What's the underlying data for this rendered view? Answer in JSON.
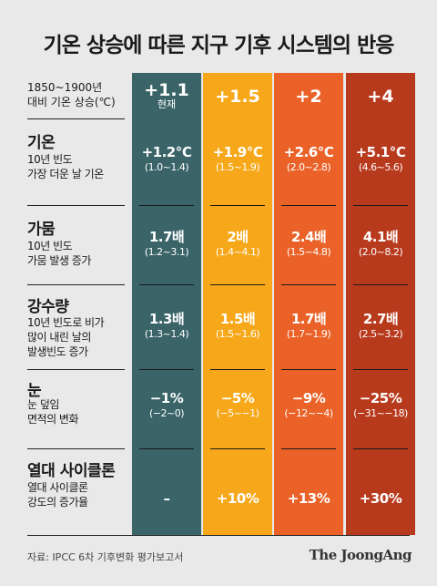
{
  "title": "기온 상승에 따른 지구 기후 시스템의 반응",
  "header_label": [
    "1850~1900년",
    "대비 기온 상승(℃)"
  ],
  "columns": [
    {
      "label": "+1.1",
      "sub": "현재",
      "color": "#3a6468"
    },
    {
      "label": "+1.5",
      "sub": "",
      "color": "#f6a81a"
    },
    {
      "label": "+2",
      "sub": "",
      "color": "#ea6228"
    },
    {
      "label": "+4",
      "sub": "",
      "color": "#b83a1d"
    }
  ],
  "rows": [
    {
      "title": "기온",
      "desc": [
        "10년 빈도",
        "가장 더운 날 기온"
      ],
      "values": [
        "+1.2℃",
        "+1.9℃",
        "+2.6℃",
        "+5.1℃"
      ],
      "ranges": [
        "(1.0~1.4)",
        "(1.5~1.9)",
        "(2.0~2.8)",
        "(4.6~5.6)"
      ]
    },
    {
      "title": "가뭄",
      "desc": [
        "10년 빈도",
        "가뭄 발생 증가"
      ],
      "values": [
        "1.7배",
        "2배",
        "2.4배",
        "4.1배"
      ],
      "ranges": [
        "(1.2~3.1)",
        "(1.4~4.1)",
        "(1.5~4.8)",
        "(2.0~8.2)"
      ]
    },
    {
      "title": "강수량",
      "desc": [
        "10년 빈도로 비가",
        "많이 내린 날의",
        "발생빈도 증가"
      ],
      "values": [
        "1.3배",
        "1.5배",
        "1.7배",
        "2.7배"
      ],
      "ranges": [
        "(1.3~1.4)",
        "(1.5~1.6)",
        "(1.7~1.9)",
        "(2.5~3.2)"
      ]
    },
    {
      "title": "눈",
      "desc": [
        "눈 덮임",
        "면적의 변화"
      ],
      "values": [
        "−1%",
        "−5%",
        "−9%",
        "−25%"
      ],
      "ranges": [
        "(−2~0)",
        "(−5~−1)",
        "(−12~−4)",
        "(−31~−18)"
      ]
    },
    {
      "title": "열대 사이클론",
      "desc": [
        "열대 사이클론",
        "강도의 증가율"
      ],
      "values": [
        "–",
        "+10%",
        "+13%",
        "+30%"
      ],
      "ranges": [
        "",
        "",
        "",
        ""
      ]
    }
  ],
  "source": "자료: IPCC 6차 기후변화 평가보고서",
  "brand": "The JoongAng",
  "chart_data": {
    "type": "table",
    "title": "기온 상승에 따른 지구 기후 시스템의 반응",
    "columns": [
      "+1.1 현재",
      "+1.5",
      "+2",
      "+4"
    ],
    "rows": [
      {
        "name": "기온 10년 빈도 가장 더운 날 기온",
        "values": [
          "+1.2℃ (1.0~1.4)",
          "+1.9℃ (1.5~1.9)",
          "+2.6℃ (2.0~2.8)",
          "+5.1℃ (4.6~5.6)"
        ]
      },
      {
        "name": "가뭄 10년 빈도 가뭄 발생 증가",
        "values": [
          "1.7배 (1.2~3.1)",
          "2배 (1.4~4.1)",
          "2.4배 (1.5~4.8)",
          "4.1배 (2.0~8.2)"
        ]
      },
      {
        "name": "강수량 10년 빈도로 비가 많이 내린 날의 발생빈도 증가",
        "values": [
          "1.3배 (1.3~1.4)",
          "1.5배 (1.5~1.6)",
          "1.7배 (1.7~1.9)",
          "2.7배 (2.5~3.2)"
        ]
      },
      {
        "name": "눈 눈 덮임 면적의 변화",
        "values": [
          "−1% (−2~0)",
          "−5% (−5~−1)",
          "−9% (−12~−4)",
          "−25% (−31~−18)"
        ]
      },
      {
        "name": "열대 사이클론 강도의 증가율",
        "values": [
          "–",
          "+10%",
          "+13%",
          "+30%"
        ]
      }
    ]
  }
}
